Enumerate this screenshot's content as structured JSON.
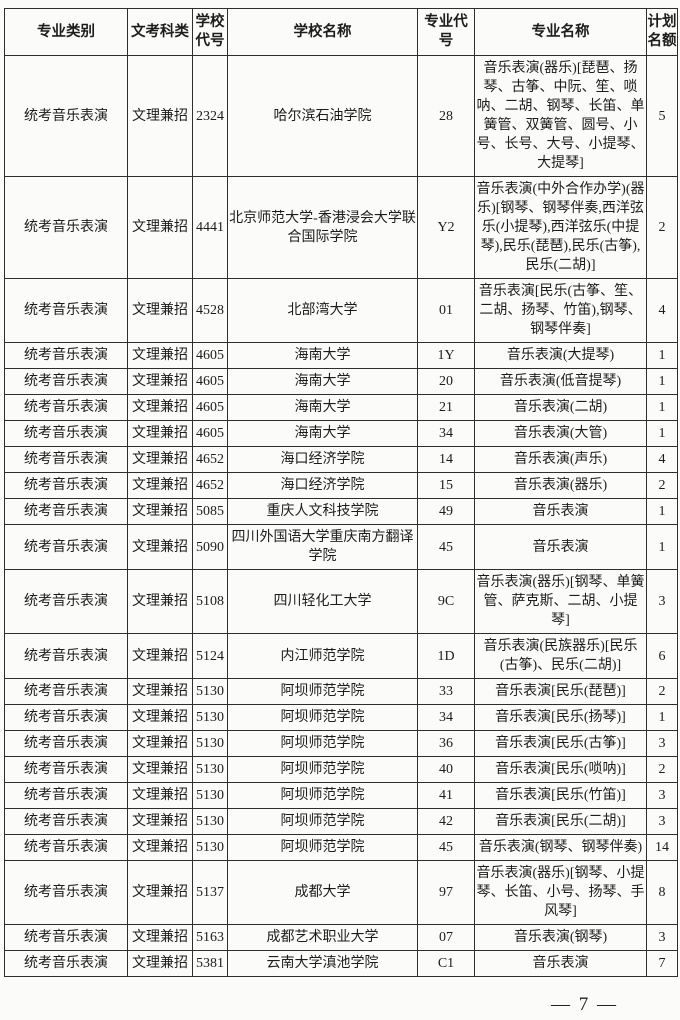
{
  "table": {
    "headers": {
      "category": "专业类别",
      "exam_type": "文考科类",
      "school_code": "学校代号",
      "school_name": "学校名称",
      "major_code": "专业代号",
      "major_name": "专业名称",
      "quota": "计划名额"
    },
    "rows": [
      {
        "category": "统考音乐表演",
        "exam_type": "文理兼招",
        "school_code": "2324",
        "school_name": "哈尔滨石油学院",
        "major_code": "28",
        "major_name": "音乐表演(器乐)[琵琶、扬琴、古筝、中阮、笙、唢呐、二胡、钢琴、长笛、单簧管、双簧管、圆号、小号、长号、大号、小提琴、大提琴]",
        "quota": "5"
      },
      {
        "category": "统考音乐表演",
        "exam_type": "文理兼招",
        "school_code": "4441",
        "school_name": "北京师范大学-香港浸会大学联合国际学院",
        "major_code": "Y2",
        "major_name": "音乐表演(中外合作办学)(器乐)[钢琴、钢琴伴奏,西洋弦乐(小提琴),西洋弦乐(中提琴),民乐(琵琶),民乐(古筝),民乐(二胡)]",
        "quota": "2"
      },
      {
        "category": "统考音乐表演",
        "exam_type": "文理兼招",
        "school_code": "4528",
        "school_name": "北部湾大学",
        "major_code": "01",
        "major_name": "音乐表演[民乐(古筝、笙、二胡、扬琴、竹笛),钢琴、钢琴伴奏]",
        "quota": "4"
      },
      {
        "category": "统考音乐表演",
        "exam_type": "文理兼招",
        "school_code": "4605",
        "school_name": "海南大学",
        "major_code": "1Y",
        "major_name": "音乐表演(大提琴)",
        "quota": "1"
      },
      {
        "category": "统考音乐表演",
        "exam_type": "文理兼招",
        "school_code": "4605",
        "school_name": "海南大学",
        "major_code": "20",
        "major_name": "音乐表演(低音提琴)",
        "quota": "1"
      },
      {
        "category": "统考音乐表演",
        "exam_type": "文理兼招",
        "school_code": "4605",
        "school_name": "海南大学",
        "major_code": "21",
        "major_name": "音乐表演(二胡)",
        "quota": "1"
      },
      {
        "category": "统考音乐表演",
        "exam_type": "文理兼招",
        "school_code": "4605",
        "school_name": "海南大学",
        "major_code": "34",
        "major_name": "音乐表演(大管)",
        "quota": "1"
      },
      {
        "category": "统考音乐表演",
        "exam_type": "文理兼招",
        "school_code": "4652",
        "school_name": "海口经济学院",
        "major_code": "14",
        "major_name": "音乐表演(声乐)",
        "quota": "4"
      },
      {
        "category": "统考音乐表演",
        "exam_type": "文理兼招",
        "school_code": "4652",
        "school_name": "海口经济学院",
        "major_code": "15",
        "major_name": "音乐表演(器乐)",
        "quota": "2"
      },
      {
        "category": "统考音乐表演",
        "exam_type": "文理兼招",
        "school_code": "5085",
        "school_name": "重庆人文科技学院",
        "major_code": "49",
        "major_name": "音乐表演",
        "quota": "1"
      },
      {
        "category": "统考音乐表演",
        "exam_type": "文理兼招",
        "school_code": "5090",
        "school_name": "四川外国语大学重庆南方翻译学院",
        "major_code": "45",
        "major_name": "音乐表演",
        "quota": "1"
      },
      {
        "category": "统考音乐表演",
        "exam_type": "文理兼招",
        "school_code": "5108",
        "school_name": "四川轻化工大学",
        "major_code": "9C",
        "major_name": "音乐表演(器乐)[钢琴、单簧管、萨克斯、二胡、小提琴]",
        "quota": "3"
      },
      {
        "category": "统考音乐表演",
        "exam_type": "文理兼招",
        "school_code": "5124",
        "school_name": "内江师范学院",
        "major_code": "1D",
        "major_name": "音乐表演(民族器乐)[民乐(古筝)、民乐(二胡)]",
        "quota": "6"
      },
      {
        "category": "统考音乐表演",
        "exam_type": "文理兼招",
        "school_code": "5130",
        "school_name": "阿坝师范学院",
        "major_code": "33",
        "major_name": "音乐表演[民乐(琵琶)]",
        "quota": "2"
      },
      {
        "category": "统考音乐表演",
        "exam_type": "文理兼招",
        "school_code": "5130",
        "school_name": "阿坝师范学院",
        "major_code": "34",
        "major_name": "音乐表演[民乐(扬琴)]",
        "quota": "1"
      },
      {
        "category": "统考音乐表演",
        "exam_type": "文理兼招",
        "school_code": "5130",
        "school_name": "阿坝师范学院",
        "major_code": "36",
        "major_name": "音乐表演[民乐(古筝)]",
        "quota": "3"
      },
      {
        "category": "统考音乐表演",
        "exam_type": "文理兼招",
        "school_code": "5130",
        "school_name": "阿坝师范学院",
        "major_code": "40",
        "major_name": "音乐表演[民乐(唢呐)]",
        "quota": "2"
      },
      {
        "category": "统考音乐表演",
        "exam_type": "文理兼招",
        "school_code": "5130",
        "school_name": "阿坝师范学院",
        "major_code": "41",
        "major_name": "音乐表演[民乐(竹笛)]",
        "quota": "3"
      },
      {
        "category": "统考音乐表演",
        "exam_type": "文理兼招",
        "school_code": "5130",
        "school_name": "阿坝师范学院",
        "major_code": "42",
        "major_name": "音乐表演[民乐(二胡)]",
        "quota": "3"
      },
      {
        "category": "统考音乐表演",
        "exam_type": "文理兼招",
        "school_code": "5130",
        "school_name": "阿坝师范学院",
        "major_code": "45",
        "major_name": "音乐表演(钢琴、钢琴伴奏)",
        "quota": "14"
      },
      {
        "category": "统考音乐表演",
        "exam_type": "文理兼招",
        "school_code": "5137",
        "school_name": "成都大学",
        "major_code": "97",
        "major_name": "音乐表演(器乐)[钢琴、小提琴、长笛、小号、扬琴、手风琴]",
        "quota": "8"
      },
      {
        "category": "统考音乐表演",
        "exam_type": "文理兼招",
        "school_code": "5163",
        "school_name": "成都艺术职业大学",
        "major_code": "07",
        "major_name": "音乐表演(钢琴)",
        "quota": "3"
      },
      {
        "category": "统考音乐表演",
        "exam_type": "文理兼招",
        "school_code": "5381",
        "school_name": "云南大学滇池学院",
        "major_code": "C1",
        "major_name": "音乐表演",
        "quota": "7"
      }
    ]
  },
  "footer": {
    "page_number": "— 7 —"
  }
}
